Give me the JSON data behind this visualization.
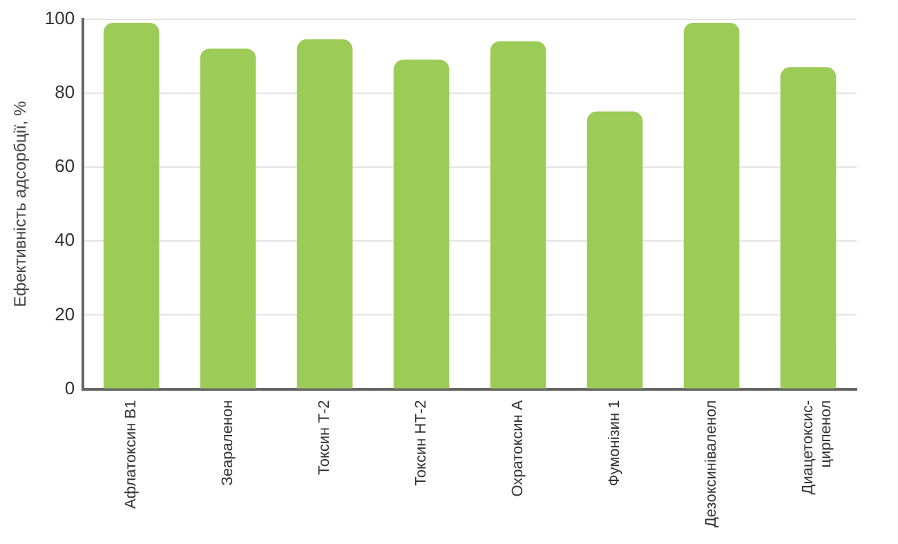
{
  "chart_data": {
    "type": "bar",
    "ylabel": "Ефективність адсорбції, %",
    "categories": [
      "Афлатоксин B1",
      "Зеараленон",
      "Токсин Т-2",
      "Токсин НТ-2",
      "Охратоксин А",
      "Фумонізин 1",
      "Дезоксиніваленол",
      "Диацетоксис-\nцирпенол"
    ],
    "values": [
      99,
      92,
      94.5,
      89,
      94,
      75,
      99,
      87
    ],
    "color": "#9ccc57",
    "ylim": [
      0,
      100
    ],
    "yticks": [
      0,
      20,
      40,
      60,
      80,
      100
    ],
    "grid": "y",
    "legend": false
  }
}
